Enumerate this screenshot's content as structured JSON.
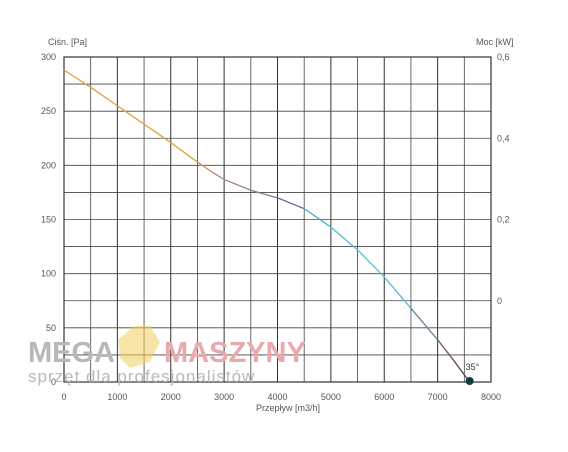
{
  "chart_data": {
    "type": "line",
    "xlabel": "Przepływ [m3/h]",
    "ylabel_left": "Ciśn. [Pa]",
    "ylabel_right": "Moc [kW]",
    "xlim": [
      0,
      8000
    ],
    "ylim_left": [
      0,
      300
    ],
    "ylim_right": [
      -0.2,
      0.6
    ],
    "x_ticks": [
      "0",
      "1000",
      "2000",
      "3000",
      "4000",
      "5000",
      "6000",
      "7000",
      "8000"
    ],
    "y_ticks_left": [
      "0",
      "50",
      "100",
      "150",
      "200",
      "250",
      "300"
    ],
    "y_ticks_right": [
      "0,6",
      "0,4",
      "0,2",
      "0"
    ],
    "y_ticks_right_values": [
      0.6,
      0.4,
      0.2,
      0
    ],
    "grid": true,
    "series": [
      {
        "x": [
          0,
          500,
          1000,
          1500,
          2000,
          2500,
          2800,
          3000,
          3500,
          4000,
          4500,
          5000,
          5500,
          6000,
          6500,
          7000,
          7300,
          7600
        ],
        "values": [
          288,
          272,
          255,
          238,
          221,
          203,
          193,
          187,
          177,
          170,
          160,
          143,
          122,
          97,
          68,
          39,
          20,
          0
        ],
        "colors": [
          "#e0a040",
          "#e0a040",
          "#e0a040",
          "#e0a040",
          "#e0a040",
          "#d09060",
          "#b080a0",
          "#a080a0",
          "#808080",
          "#606090",
          "#50b0c8",
          "#50c0d0",
          "#50c0d0",
          "#50c0d0",
          "#6080a0",
          "#705060",
          "#604050",
          "#604050"
        ]
      }
    ],
    "annotations": [
      {
        "text": "35°",
        "x": 7600,
        "y": 0
      }
    ],
    "marker_color": "#0f3c3c"
  },
  "watermark": {
    "brand_left": "MEGA",
    "brand_right": "MASZYNY",
    "tagline": "sprzęt dla profesjonalistów",
    "logo_color": "#f0d060"
  }
}
